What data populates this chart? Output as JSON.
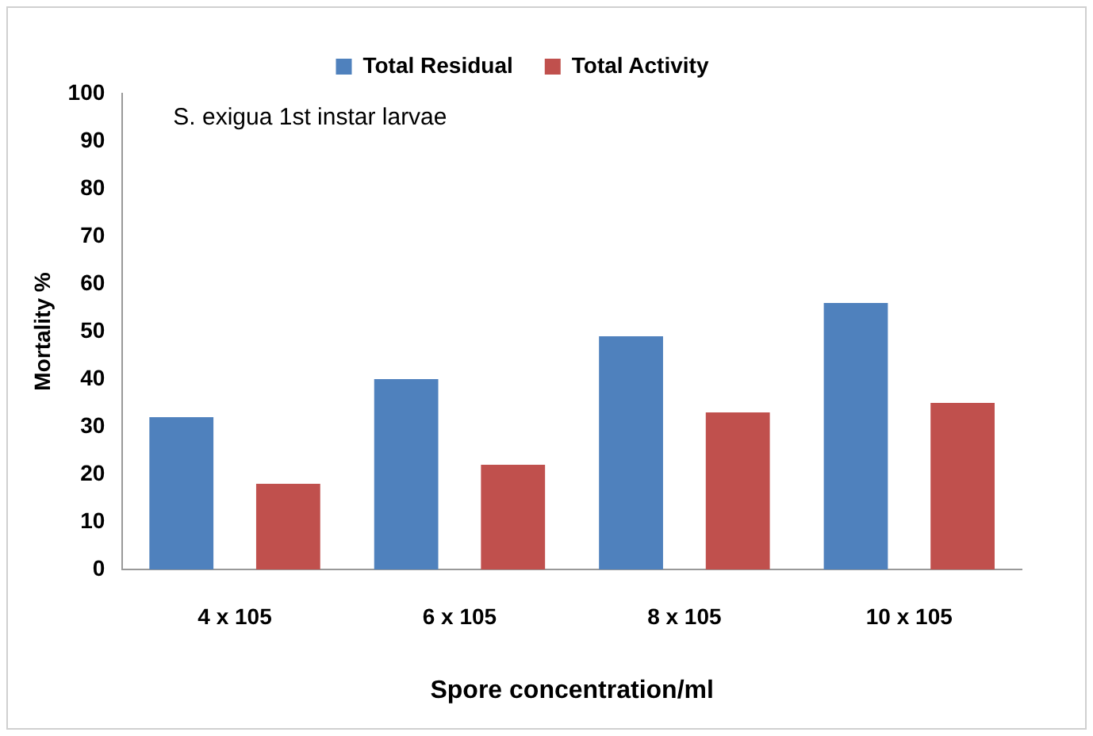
{
  "chart_data": {
    "type": "bar",
    "xlabel": "Spore concentration/ml",
    "ylabel": "Mortality %",
    "categories": [
      "4 x 105",
      "6 x 105",
      "8 x 105",
      "10 x 105"
    ],
    "series": [
      {
        "name": "Total Residual",
        "color": "#4f81bd",
        "values": [
          32,
          40,
          49,
          56
        ]
      },
      {
        "name": "Total Activity",
        "color": "#c0504d",
        "values": [
          18,
          22,
          33,
          35
        ]
      }
    ],
    "ylim": [
      0,
      100
    ],
    "yticks": [
      0,
      10,
      20,
      30,
      40,
      50,
      60,
      70,
      80,
      90,
      100
    ],
    "grid": false,
    "legend": "top",
    "annotations": [
      "S. exigua 1st instar larvae"
    ]
  }
}
